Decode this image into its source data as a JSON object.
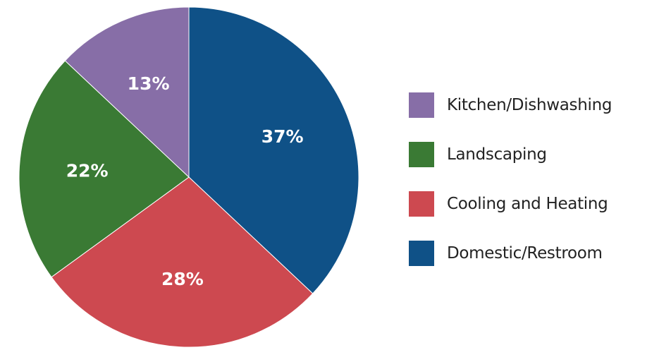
{
  "chart_data": {
    "type": "pie",
    "title": "",
    "legend_position": "right",
    "slices": [
      {
        "name": "Domestic/Restroom",
        "value": 37,
        "label": "37%",
        "color": "#0f5187"
      },
      {
        "name": "Cooling and Heating",
        "value": 28,
        "label": "28%",
        "color": "#cd4950"
      },
      {
        "name": "Landscaping",
        "value": 22,
        "label": "22%",
        "color": "#3a7a34"
      },
      {
        "name": "Kitchen/Dishwashing",
        "value": 13,
        "label": "13%",
        "color": "#876ea7"
      }
    ],
    "legend": [
      {
        "name": "Kitchen/Dishwashing",
        "color": "#876ea7"
      },
      {
        "name": "Landscaping",
        "color": "#3a7a34"
      },
      {
        "name": "Cooling and Heating",
        "color": "#cd4950"
      },
      {
        "name": "Domestic/Restroom",
        "color": "#0f5187"
      }
    ]
  }
}
